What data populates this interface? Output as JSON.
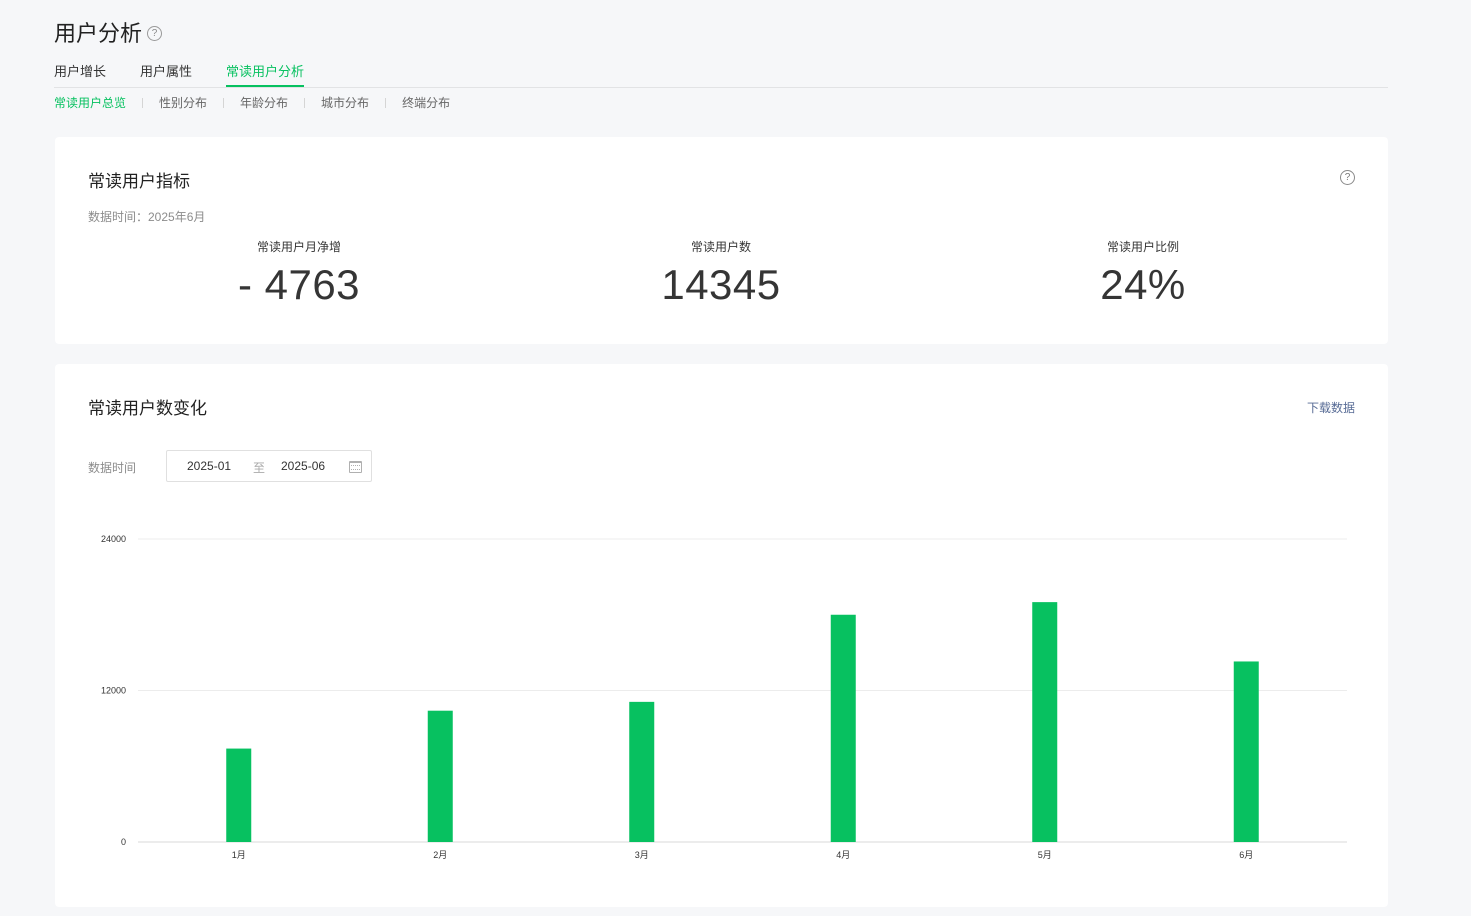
{
  "page": {
    "title": "用户分析",
    "help_icon": "?"
  },
  "tabs": [
    {
      "label": "用户增长",
      "active": false
    },
    {
      "label": "用户属性",
      "active": false
    },
    {
      "label": "常读用户分析",
      "active": true
    }
  ],
  "subtabs": [
    {
      "label": "常读用户总览",
      "active": true
    },
    {
      "label": "性别分布",
      "active": false
    },
    {
      "label": "年龄分布",
      "active": false
    },
    {
      "label": "城市分布",
      "active": false
    },
    {
      "label": "终端分布",
      "active": false
    }
  ],
  "metrics_card": {
    "title": "常读用户指标",
    "help_icon": "?",
    "data_time": "数据时间：2025年6月",
    "metrics": [
      {
        "label": "常读用户月净增",
        "value": "- 4763"
      },
      {
        "label": "常读用户数",
        "value": "14345"
      },
      {
        "label": "常读用户比例",
        "value": "24%"
      }
    ]
  },
  "trend_card": {
    "title": "常读用户数变化",
    "download_label": "下载数据",
    "range_label": "数据时间",
    "range_start": "2025-01",
    "range_separator": "至",
    "range_end": "2025-06"
  },
  "chart_data": {
    "type": "bar",
    "categories": [
      "1月",
      "2月",
      "3月",
      "4月",
      "5月",
      "6月"
    ],
    "values": [
      7400,
      10400,
      11100,
      18000,
      19000,
      14300
    ],
    "ylim": [
      0,
      24000
    ],
    "yticks": [
      0,
      12000,
      24000
    ],
    "grid": true,
    "color": "#07c160"
  }
}
